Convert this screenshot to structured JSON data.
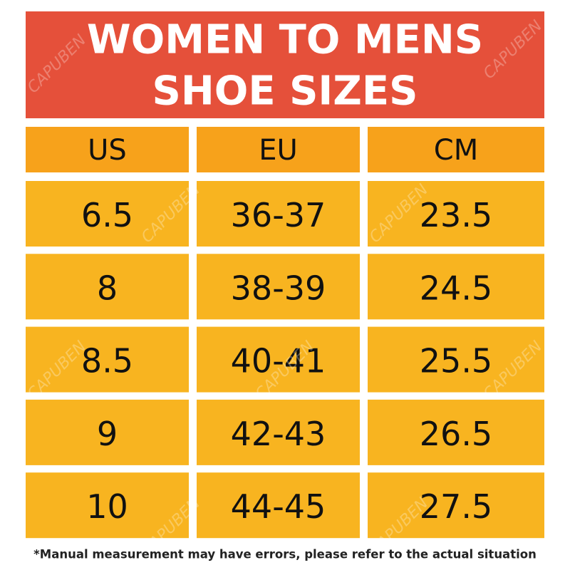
{
  "header": {
    "title_lines": [
      "WOMEN TO MENS",
      "SHOE SIZES"
    ]
  },
  "table": {
    "columns": [
      "US",
      "EU",
      "CM"
    ],
    "rows": [
      [
        "6.5",
        "36-37",
        "23.5"
      ],
      [
        "8",
        "38-39",
        "24.5"
      ],
      [
        "8.5",
        "40-41",
        "25.5"
      ],
      [
        "9",
        "42-43",
        "26.5"
      ],
      [
        "10",
        "44-45",
        "27.5"
      ]
    ]
  },
  "footnote": "*Manual measurement may have errors, please refer to the actual situation",
  "watermark": "CAPUBEN"
}
